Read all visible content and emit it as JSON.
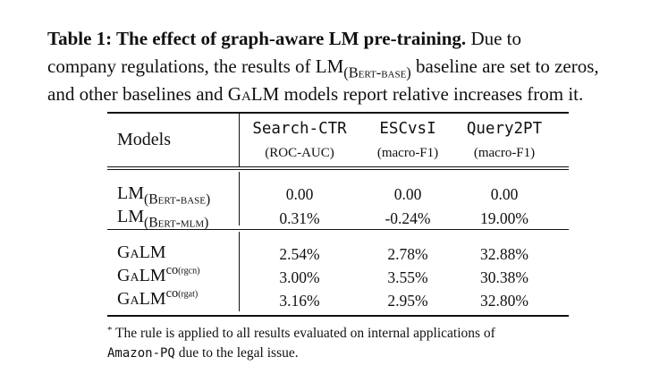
{
  "caption": {
    "title": "Table 1: The effect of graph-aware LM pre-training.",
    "line1_rest": "Due to",
    "line2_a": "company regulations, the results of LM",
    "line2_sub": "(Bert-base)",
    "line2_b": "baseline are set to zeros,",
    "line3_a": "and other baselines and G",
    "line3_sc": "a",
    "line3_b": "LM models report relative increases from it."
  },
  "table": {
    "header": {
      "models_label": "Models",
      "columns": [
        {
          "metric": "Search-CTR",
          "measure": "(ROC-AUC)"
        },
        {
          "metric": "ESCvsI",
          "measure": "(macro-F1)"
        },
        {
          "metric": "Query2PT",
          "measure": "(macro-F1)"
        }
      ]
    },
    "group1": [
      {
        "base": "LM",
        "sub": "(Bert-base)",
        "values": [
          "0.00",
          "0.00",
          "0.00"
        ]
      },
      {
        "base": "LM",
        "sub": "(Bert-mlm)",
        "values": [
          "0.31%",
          "-0.24%",
          "19.00%"
        ]
      }
    ],
    "group2": [
      {
        "g": "G",
        "a": "a",
        "lm": "LM",
        "sup": "",
        "sup_small": "",
        "values": [
          "2.54%",
          "2.78%",
          "32.88%"
        ]
      },
      {
        "g": "G",
        "a": "a",
        "lm": "LM",
        "sup": "co",
        "sup_small": "(rgcn)",
        "values": [
          "3.00%",
          "3.55%",
          "30.38%"
        ]
      },
      {
        "g": "G",
        "a": "a",
        "lm": "LM",
        "sup": "co",
        "sup_small": "(rgat)",
        "values": [
          "3.16%",
          "2.95%",
          "32.80%"
        ]
      }
    ]
  },
  "footnote": {
    "star": "*",
    "text_a": " The rule is applied to all results evaluated on internal applications of",
    "mono": "Amazon-PQ",
    "text_b": " due to the legal issue."
  }
}
